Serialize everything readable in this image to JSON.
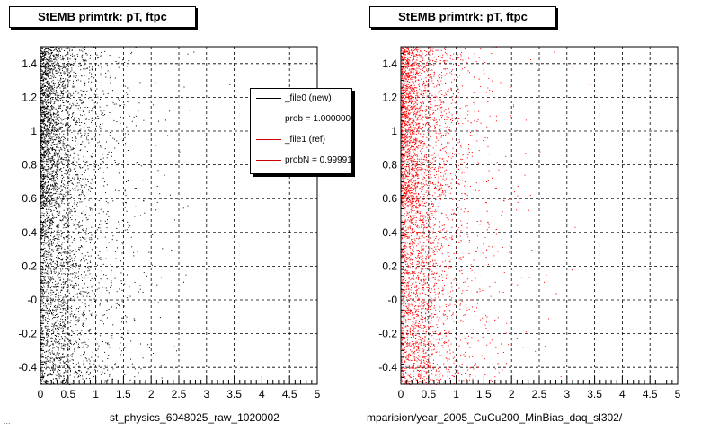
{
  "panels": [
    {
      "title": "StEMB primtrk: pT, ftpc",
      "xlabel": "st_physics_6048025_raw_1020002",
      "marker_color": "#000000"
    },
    {
      "title": "StEMB primtrk: pT, ftpc",
      "xlabel": "mparision/year_2005_CuCu200_MinBias_daq_sl302/",
      "marker_color": "#ff0000"
    }
  ],
  "legend": {
    "entries": [
      {
        "label": "_file0 (new)",
        "color": "#000000"
      },
      {
        "label": "prob = 1.000000",
        "color": "#000000"
      },
      {
        "label": "_file1 (ref)",
        "color": "#cc0000"
      },
      {
        "label": "probN = 0.99991",
        "color": "#cc0000"
      }
    ]
  },
  "footer": "...",
  "chart_data": [
    {
      "type": "scatter",
      "title": "StEMB primtrk: pT, ftpc",
      "xlabel": "st_physics_6048025_raw_1020002",
      "ylabel": "",
      "xlim": [
        0,
        5
      ],
      "ylim": [
        -0.5,
        1.5
      ],
      "xticks": [
        "0",
        "0.5",
        "1",
        "1.5",
        "2",
        "2.5",
        "3",
        "3.5",
        "4",
        "4.5",
        "5"
      ],
      "yticks": [
        "-0.4",
        "-0.2",
        "-0",
        "0.2",
        "0.4",
        "0.6",
        "0.8",
        "1",
        "1.2",
        "1.4"
      ],
      "grid": true,
      "series": [
        {
          "color": "#000000",
          "x_range": [
            0,
            5
          ],
          "y_range": [
            -0.5,
            1.5
          ],
          "description_points": 4200
        }
      ]
    },
    {
      "type": "scatter",
      "title": "StEMB primtrk: pT, ftpc",
      "xlabel": "mparision/year_2005_CuCu200_MinBias_daq_sl302/",
      "ylabel": "",
      "xlim": [
        0,
        5
      ],
      "ylim": [
        -0.5,
        1.5
      ],
      "xticks": [
        "0",
        "0.5",
        "1",
        "1.5",
        "2",
        "2.5",
        "3",
        "3.5",
        "4",
        "4.5",
        "5"
      ],
      "yticks": [
        "-0.4",
        "-0.2",
        "-0",
        "0.2",
        "0.4",
        "0.6",
        "0.8",
        "1",
        "1.2",
        "1.4"
      ],
      "grid": true,
      "series": [
        {
          "color": "#ff0000",
          "x_range": [
            0,
            5
          ],
          "y_range": [
            -0.5,
            1.5
          ],
          "description_points": 4200
        }
      ]
    }
  ]
}
